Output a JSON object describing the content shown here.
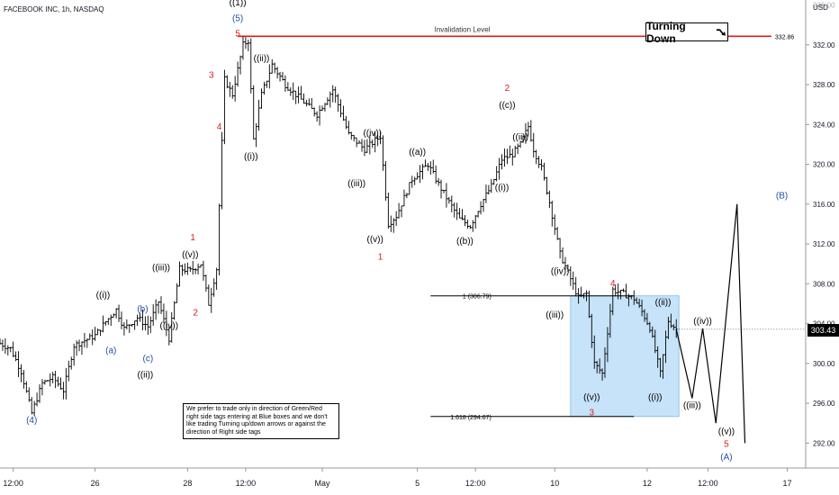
{
  "header": {
    "title": "FACEBOOK INC, 1h, NASDAQ",
    "currency": "USD"
  },
  "turning_down": {
    "label": "Turning Down",
    "icon": "arrow-down-right-icon"
  },
  "note": {
    "text": "We prefer to trade only in direction of Green/Red right side tags entering at Blue boxes and we don't like trading Turning up/down arrows or against the direction of Right side tags"
  },
  "invalidation": {
    "label": "Invalidation Level",
    "value": 332.86,
    "value_label": "332.86"
  },
  "colors": {
    "red": "#e31b1b",
    "blue": "#1e4fa8",
    "box": "#b8dcf7",
    "black": "#000000"
  },
  "chart_data": {
    "type": "line",
    "ylim": [
      289.5,
      336.5
    ],
    "yticks": [
      292,
      296,
      300,
      304,
      308,
      312,
      316,
      320,
      324,
      328,
      332
    ],
    "ytick_labels": [
      "292.00",
      "296.00",
      "300.00",
      "304.00",
      "308.00",
      "312.00",
      "316.00",
      "320.00",
      "324.00",
      "328.00",
      "332.00"
    ],
    "top_partial_tick": "336.00",
    "x_ticks": [
      {
        "label": "12:00",
        "bar": 5
      },
      {
        "label": "26",
        "bar": 36
      },
      {
        "label": "28",
        "bar": 71
      },
      {
        "label": "12:00",
        "bar": 93
      },
      {
        "label": "May",
        "bar": 122
      },
      {
        "label": "5",
        "bar": 158
      },
      {
        "label": "12:00",
        "bar": 180
      },
      {
        "label": "10",
        "bar": 210
      },
      {
        "label": "12",
        "bar": 245
      },
      {
        "label": "12:00",
        "bar": 268
      },
      {
        "label": "17",
        "bar": 298
      }
    ],
    "last_price": 303.43,
    "last_price_label": "303.43",
    "price_path": [
      [
        0,
        302
      ],
      [
        4,
        301.5
      ],
      [
        8,
        299.2
      ],
      [
        12,
        295.0
      ],
      [
        16,
        298.0
      ],
      [
        20,
        298.6
      ],
      [
        24,
        297.3
      ],
      [
        28,
        301.8
      ],
      [
        32,
        302.3
      ],
      [
        36,
        302.8
      ],
      [
        40,
        304.2
      ],
      [
        44,
        305.4
      ],
      [
        47,
        303.5
      ],
      [
        52,
        304.6
      ],
      [
        56,
        303.7
      ],
      [
        60,
        306.2
      ],
      [
        64,
        302.5
      ],
      [
        68,
        309.5
      ],
      [
        72,
        309.3
      ],
      [
        76,
        310.0
      ],
      [
        79,
        306.0
      ],
      [
        82,
        309.5
      ],
      [
        85,
        328.5
      ],
      [
        88,
        327.0
      ],
      [
        92,
        332.0
      ],
      [
        94,
        332.4
      ],
      [
        96,
        322.5
      ],
      [
        99,
        327.0
      ],
      [
        103,
        330.0
      ],
      [
        108,
        328.0
      ],
      [
        114,
        326.5
      ],
      [
        120,
        325.0
      ],
      [
        126,
        327.5
      ],
      [
        132,
        323.0
      ],
      [
        138,
        321.5
      ],
      [
        144,
        322.8
      ],
      [
        147,
        314.0
      ],
      [
        150,
        314.8
      ],
      [
        156,
        318.5
      ],
      [
        162,
        320.0
      ],
      [
        166,
        318.0
      ],
      [
        170,
        316.2
      ],
      [
        174,
        314.5
      ],
      [
        178,
        313.8
      ],
      [
        182,
        316.0
      ],
      [
        186,
        317.8
      ],
      [
        190,
        320.5
      ],
      [
        194,
        321.0
      ],
      [
        197,
        322.0
      ],
      [
        200,
        323.8
      ],
      [
        202,
        321.5
      ],
      [
        205,
        319.6
      ],
      [
        208,
        316.2
      ],
      [
        212,
        311.0
      ],
      [
        216,
        308.5
      ],
      [
        219,
        306.6
      ],
      [
        222,
        307.0
      ],
      [
        225,
        300.0
      ],
      [
        228,
        299.0
      ],
      [
        232,
        307.4
      ],
      [
        236,
        307.0
      ],
      [
        240,
        306.5
      ],
      [
        243,
        305.2
      ],
      [
        246,
        303.6
      ],
      [
        250,
        299.0
      ],
      [
        253,
        304.3
      ],
      [
        256,
        303.43
      ]
    ],
    "projection_path": [
      [
        256,
        303.43
      ],
      [
        262,
        296.5
      ],
      [
        266,
        303.5
      ],
      [
        271,
        294.0
      ],
      [
        279,
        316.0
      ],
      [
        282,
        292.0
      ]
    ],
    "fib_levels": [
      {
        "label": "1 (306.79)",
        "value": 306.79
      },
      {
        "label": "1.618 (294.67)",
        "value": 294.67
      }
    ],
    "box": {
      "bar_start": 216,
      "bar_end": 257,
      "top": 306.79,
      "bottom": 294.67
    },
    "annotations": [
      {
        "text": "(4)",
        "bar": 12,
        "price": 295.0,
        "pos": "below",
        "color": "blue"
      },
      {
        "text": "((i))",
        "bar": 39,
        "price": 306.2,
        "pos": "above",
        "color": "black"
      },
      {
        "text": "(a)",
        "bar": 42,
        "price": 302.0,
        "pos": "below",
        "color": "blue"
      },
      {
        "text": "(b)",
        "bar": 54,
        "price": 304.8,
        "pos": "above",
        "color": "blue"
      },
      {
        "text": "(c)",
        "bar": 56,
        "price": 301.2,
        "pos": "below",
        "color": "blue"
      },
      {
        "text": "((ii))",
        "bar": 55,
        "price": 299.6,
        "pos": "below",
        "color": "black"
      },
      {
        "text": "((iii))",
        "bar": 61,
        "price": 309.0,
        "pos": "above",
        "color": "black"
      },
      {
        "text": "((iv))",
        "bar": 64,
        "price": 304.5,
        "pos": "below",
        "color": "black"
      },
      {
        "text": "((v))",
        "bar": 72,
        "price": 310.3,
        "pos": "above",
        "color": "black"
      },
      {
        "text": "1",
        "bar": 73,
        "price": 312.0,
        "pos": "above",
        "color": "red"
      },
      {
        "text": "2",
        "bar": 74,
        "price": 305.8,
        "pos": "below",
        "color": "red"
      },
      {
        "text": "3",
        "bar": 80,
        "price": 328.3,
        "pos": "above",
        "color": "red"
      },
      {
        "text": "4",
        "bar": 83,
        "price": 324.5,
        "pos": "below",
        "color": "red"
      },
      {
        "text": "5",
        "bar": 90,
        "price": 332.5,
        "pos": "above",
        "color": "red"
      },
      {
        "text": "(5)",
        "bar": 90,
        "price": 334.0,
        "pos": "above",
        "color": "blue"
      },
      {
        "text": "((1))",
        "bar": 90,
        "price": 335.6,
        "pos": "above",
        "color": "black"
      },
      {
        "text": "((i))",
        "bar": 95,
        "price": 321.5,
        "pos": "below",
        "color": "black"
      },
      {
        "text": "((ii))",
        "bar": 99,
        "price": 330.0,
        "pos": "above",
        "color": "black"
      },
      {
        "text": "((iii))",
        "bar": 135,
        "price": 318.8,
        "pos": "below",
        "color": "black"
      },
      {
        "text": "((iv))",
        "bar": 141,
        "price": 322.5,
        "pos": "above",
        "color": "black"
      },
      {
        "text": "((v))",
        "bar": 142,
        "price": 313.2,
        "pos": "below",
        "color": "black"
      },
      {
        "text": "1",
        "bar": 144,
        "price": 311.4,
        "pos": "below",
        "color": "red"
      },
      {
        "text": "((a))",
        "bar": 158,
        "price": 320.6,
        "pos": "above",
        "color": "black"
      },
      {
        "text": "((b))",
        "bar": 176,
        "price": 313.0,
        "pos": "below",
        "color": "black"
      },
      {
        "text": "((c))",
        "bar": 192,
        "price": 325.3,
        "pos": "above",
        "color": "black"
      },
      {
        "text": "2",
        "bar": 192,
        "price": 327.0,
        "pos": "above",
        "color": "red"
      },
      {
        "text": "((i))",
        "bar": 190,
        "price": 318.4,
        "pos": "below",
        "color": "black"
      },
      {
        "text": "((ii))",
        "bar": 197,
        "price": 322.1,
        "pos": "above",
        "color": "black"
      },
      {
        "text": "((iv))",
        "bar": 212,
        "price": 308.6,
        "pos": "above",
        "color": "black"
      },
      {
        "text": "((iii))",
        "bar": 210,
        "price": 305.6,
        "pos": "below",
        "color": "black"
      },
      {
        "text": "4",
        "bar": 232,
        "price": 307.4,
        "pos": "above",
        "color": "red"
      },
      {
        "text": "((v))",
        "bar": 224,
        "price": 297.3,
        "pos": "below",
        "color": "black"
      },
      {
        "text": "3",
        "bar": 224,
        "price": 295.8,
        "pos": "below",
        "color": "red"
      },
      {
        "text": "((ii))",
        "bar": 251,
        "price": 305.5,
        "pos": "above",
        "color": "black"
      },
      {
        "text": "((i))",
        "bar": 248,
        "price": 297.3,
        "pos": "below",
        "color": "black"
      },
      {
        "text": "((iii))",
        "bar": 262,
        "price": 296.5,
        "pos": "below",
        "color": "black"
      },
      {
        "text": "((iv))",
        "bar": 266,
        "price": 303.6,
        "pos": "above",
        "color": "black"
      },
      {
        "text": "((v))",
        "bar": 275,
        "price": 293.9,
        "pos": "below",
        "color": "black"
      },
      {
        "text": "5",
        "bar": 275,
        "price": 292.6,
        "pos": "below",
        "color": "red"
      },
      {
        "text": "(A)",
        "bar": 275,
        "price": 291.3,
        "pos": "below",
        "color": "blue"
      },
      {
        "text": "(B)",
        "bar": 296,
        "price": 316.2,
        "pos": "above",
        "color": "blue"
      }
    ]
  }
}
